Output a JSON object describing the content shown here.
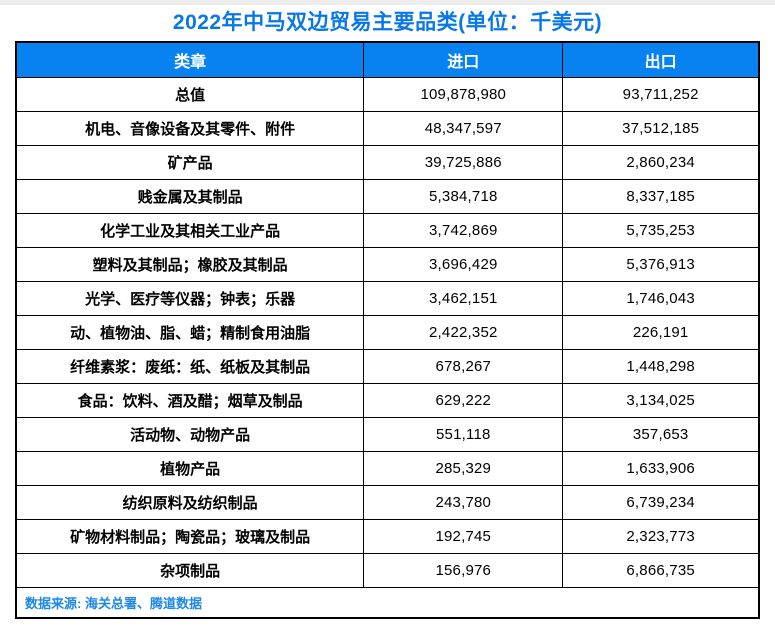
{
  "title": "2022年中马双边贸易主要品类(单位：千美元)",
  "table": {
    "headers": [
      "类章",
      "进口",
      "出口"
    ],
    "rows": [
      [
        "总值",
        "109,878,980",
        "93,711,252"
      ],
      [
        "机电、音像设备及其零件、附件",
        "48,347,597",
        "37,512,185"
      ],
      [
        "矿产品",
        "39,725,886",
        "2,860,234"
      ],
      [
        "贱金属及其制品",
        "5,384,718",
        "8,337,185"
      ],
      [
        "化学工业及其相关工业产品",
        "3,742,869",
        "5,735,253"
      ],
      [
        "塑料及其制品；橡胶及其制品",
        "3,696,429",
        "5,376,913"
      ],
      [
        "光学、医疗等仪器；钟表；乐器",
        "3,462,151",
        "1,746,043"
      ],
      [
        "动、植物油、脂、蜡；精制食用油脂",
        "2,422,352",
        "226,191"
      ],
      [
        "纤维素浆：废纸：纸、纸板及其制品",
        "678,267",
        "1,448,298"
      ],
      [
        "食品：饮料、酒及醋；烟草及制品",
        "629,222",
        "3,134,025"
      ],
      [
        "活动物、动物产品",
        "551,118",
        "357,653"
      ],
      [
        "植物产品",
        "285,329",
        "1,633,906"
      ],
      [
        "纺织原料及纺织制品",
        "243,780",
        "6,739,234"
      ],
      [
        "矿物材料制品；陶瓷品；玻璃及制品",
        "192,745",
        "2,323,773"
      ],
      [
        "杂项制品",
        "156,976",
        "6,866,735"
      ]
    ],
    "source": "数据来源: 海关总署、腾道数据"
  },
  "colors": {
    "accent_blue": "#0882f0",
    "title_blue": "#0878e8",
    "source_blue": "#1e88e8",
    "border": "#000000",
    "header_text": "#ffffff"
  },
  "chart_data": {
    "type": "table",
    "title": "2022年中马双边贸易主要品类(单位：千美元)",
    "unit": "千美元",
    "columns": [
      "类章",
      "进口",
      "出口"
    ],
    "categories": [
      "总值",
      "机电、音像设备及其零件、附件",
      "矿产品",
      "贱金属及其制品",
      "化学工业及其相关工业产品",
      "塑料及其制品；橡胶及其制品",
      "光学、医疗等仪器；钟表；乐器",
      "动、植物油、脂、蜡；精制食用油脂",
      "纤维素浆：废纸：纸、纸板及其制品",
      "食品：饮料、酒及醋；烟草及制品",
      "活动物、动物产品",
      "植物产品",
      "纺织原料及纺织制品",
      "矿物材料制品；陶瓷品；玻璃及制品",
      "杂项制品"
    ],
    "series": [
      {
        "name": "进口",
        "values": [
          109878980,
          48347597,
          39725886,
          5384718,
          3742869,
          3696429,
          3462151,
          2422352,
          678267,
          629222,
          551118,
          285329,
          243780,
          192745,
          156976
        ]
      },
      {
        "name": "出口",
        "values": [
          93711252,
          37512185,
          2860234,
          8337185,
          5735253,
          5376913,
          1746043,
          226191,
          1448298,
          3134025,
          357653,
          1633906,
          6739234,
          2323773,
          6866735
        ]
      }
    ],
    "source": "数据来源: 海关总署、腾道数据"
  }
}
